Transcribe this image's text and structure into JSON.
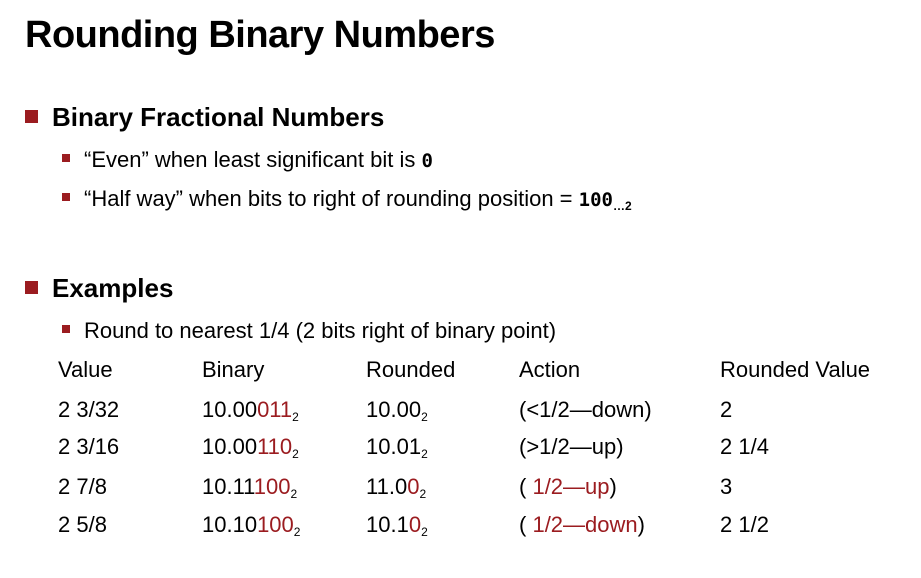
{
  "title": "Rounding Binary Numbers",
  "sections": [
    {
      "heading": "Binary Fractional Numbers",
      "bullets": [
        {
          "text": "“Even” when least significant bit is ",
          "code": "0"
        },
        {
          "text": "“Half way” when bits to right of rounding position = ",
          "code": "100",
          "code_suffix": "…2"
        }
      ]
    },
    {
      "heading": "Examples",
      "bullets": [
        {
          "text": "Round to nearest 1/4 (2 bits right of binary point)"
        }
      ]
    }
  ],
  "table": {
    "headers": [
      "Value",
      "Binary",
      "Rounded",
      "Action",
      "Rounded Value"
    ],
    "rows": [
      {
        "value": "2 3/32",
        "binary_kept": "10.00",
        "binary_rest": "011",
        "binary_base": "2",
        "rounded_kept": "10.00",
        "rounded_red": "",
        "rounded_base": "2",
        "action_pre": "(<1/2—down)",
        "action_red": "",
        "action_post": "",
        "rounded_value": "2"
      },
      {
        "value": "2 3/16",
        "binary_kept": "10.00",
        "binary_rest": "110",
        "binary_base": "2",
        "rounded_kept": "10.01",
        "rounded_red": "",
        "rounded_base": "2",
        "action_pre": "(>1/2—up)",
        "action_red": "",
        "action_post": "",
        "rounded_value": "2 1/4"
      },
      {
        "value": "2 7/8",
        "binary_kept": "10.11",
        "binary_rest": "100",
        "binary_base": "2",
        "rounded_kept": "11.0",
        "rounded_red": "0",
        "rounded_base": "2",
        "action_pre": "( ",
        "action_red": "1/2—up",
        "action_post": ")",
        "rounded_value": "3"
      },
      {
        "value": "2 5/8",
        "binary_kept": "10.10",
        "binary_rest": "100",
        "binary_base": "2",
        "rounded_kept": "10.1",
        "rounded_red": "0",
        "rounded_base": "2",
        "action_pre": "( ",
        "action_red": "1/2—down",
        "action_post": ")",
        "rounded_value": "2 1/2"
      }
    ]
  },
  "colors": {
    "accent": "#9b1c20",
    "text": "#000000",
    "background": "#ffffff"
  }
}
